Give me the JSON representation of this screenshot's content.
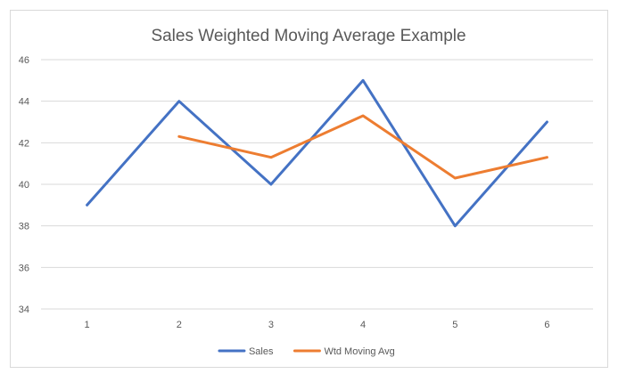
{
  "chart_data": {
    "type": "line",
    "title": "Sales Weighted Moving Average Example",
    "xlabel": "",
    "ylabel": "",
    "categories": [
      "1",
      "2",
      "3",
      "4",
      "5",
      "6"
    ],
    "ylim": [
      34,
      46
    ],
    "yticks": [
      34,
      36,
      38,
      40,
      42,
      44,
      46
    ],
    "grid": true,
    "legend_position": "bottom",
    "series": [
      {
        "name": "Sales",
        "color": "#4472c4",
        "values": [
          39,
          44,
          40,
          45,
          38,
          43
        ]
      },
      {
        "name": "Wtd Moving Avg",
        "color": "#ed7d31",
        "values": [
          null,
          42.3,
          41.3,
          43.3,
          40.3,
          41.3
        ]
      }
    ]
  }
}
